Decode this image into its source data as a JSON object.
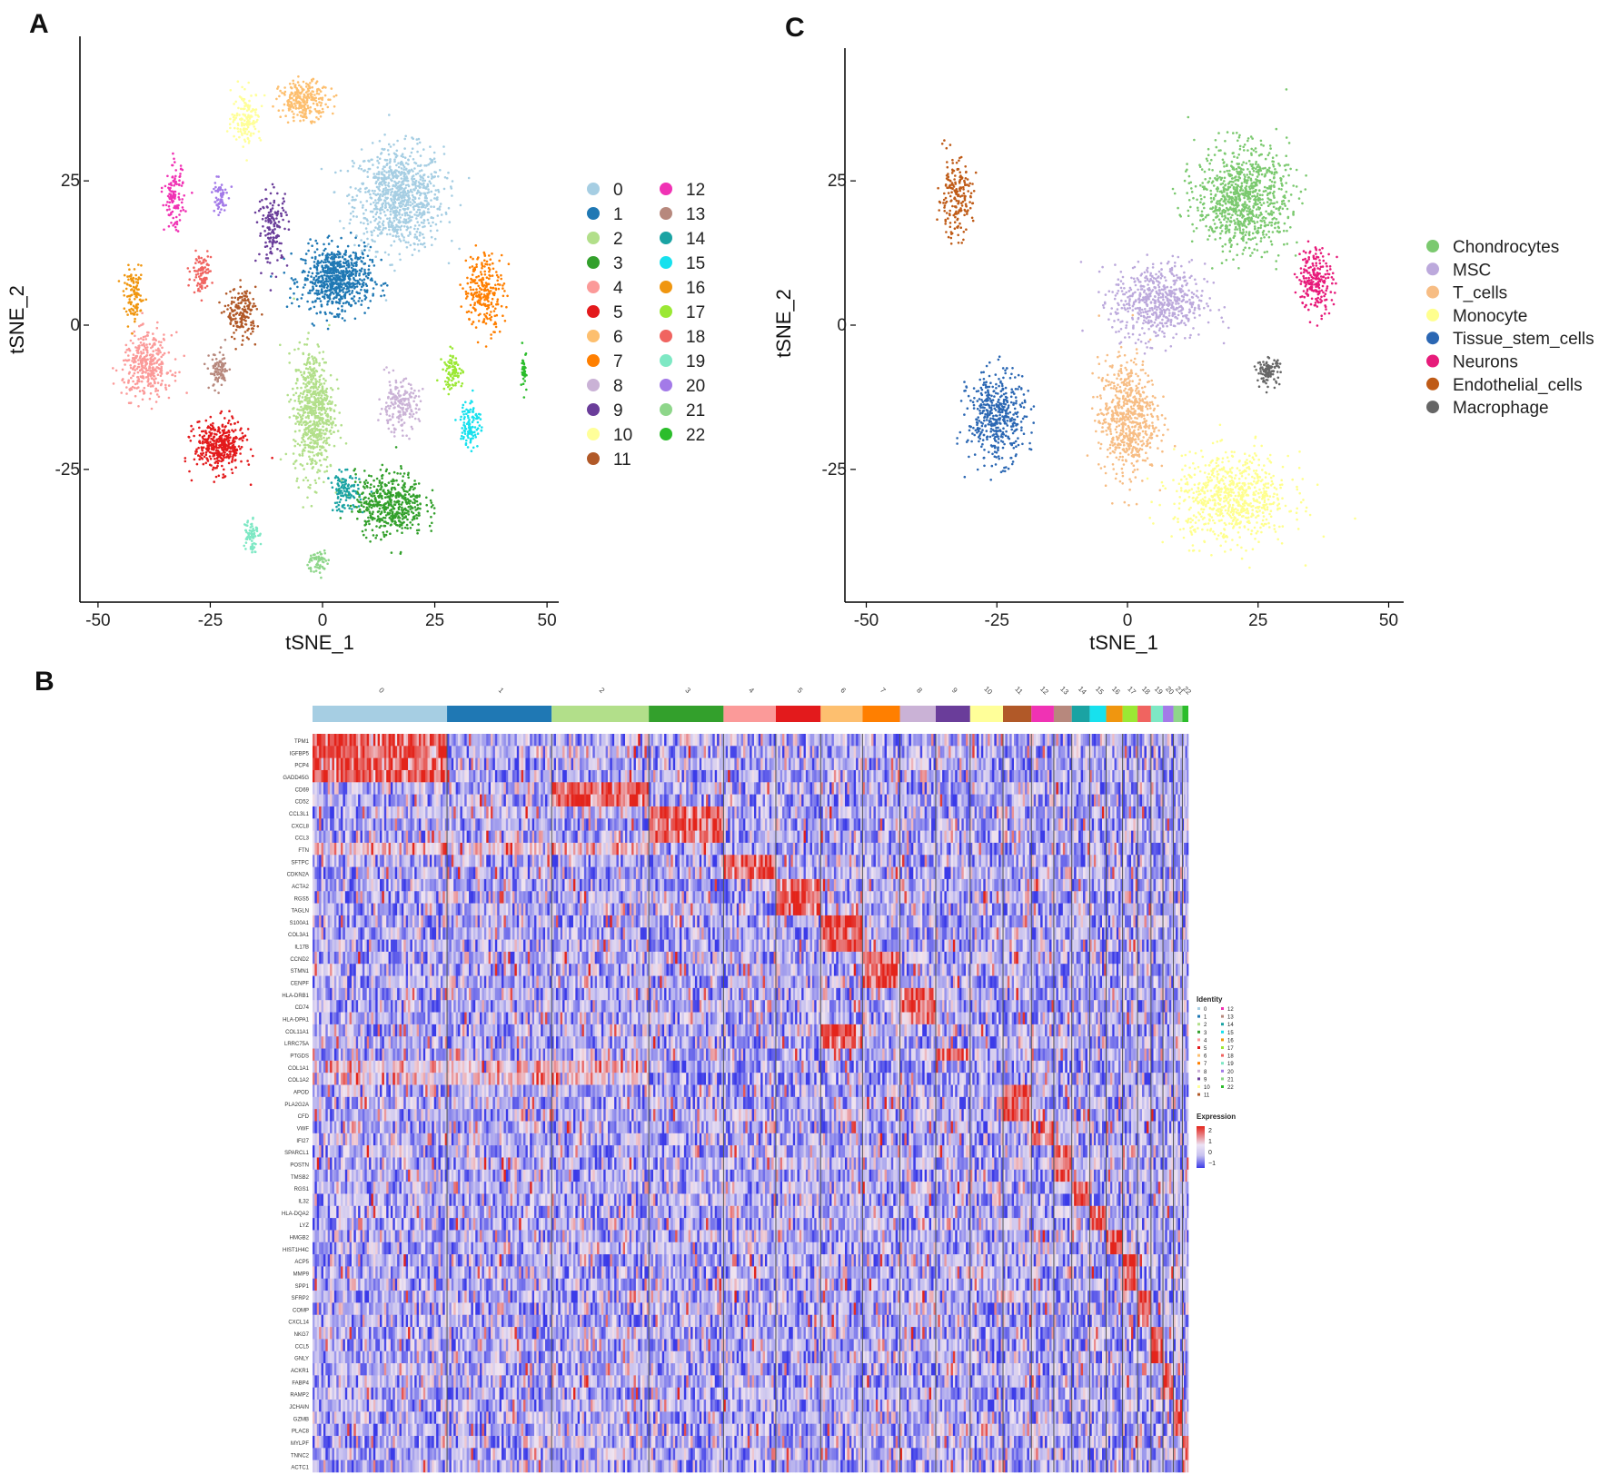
{
  "panels": {
    "a": "A",
    "b": "B",
    "c": "C"
  },
  "axis_ticks_x": [
    "-50",
    "-25",
    "0",
    "25",
    "50"
  ],
  "axis_ticks_y": [
    "-25",
    "0",
    "25"
  ],
  "chart_data": [
    {
      "type": "scatter",
      "panel": "A",
      "xlabel": "tSNE_1",
      "ylabel": "tSNE_2",
      "xlim": [
        -52,
        52
      ],
      "ylim": [
        -48,
        48
      ],
      "legend_position": "right",
      "clusters": [
        {
          "label": "0",
          "color": "#a6cee3",
          "x": 17,
          "y": 22,
          "sx": 9,
          "sy": 8,
          "n": 900
        },
        {
          "label": "1",
          "color": "#1f78b4",
          "x": 3,
          "y": 8,
          "sx": 7,
          "sy": 5,
          "n": 700
        },
        {
          "label": "2",
          "color": "#b2df8a",
          "x": -2,
          "y": -15,
          "sx": 4,
          "sy": 10,
          "n": 650
        },
        {
          "label": "3",
          "color": "#33a02c",
          "x": 15,
          "y": -31,
          "sx": 7,
          "sy": 5,
          "n": 500
        },
        {
          "label": "4",
          "color": "#fb9a99",
          "x": -39,
          "y": -7,
          "sx": 5,
          "sy": 5,
          "n": 350
        },
        {
          "label": "5",
          "color": "#e31a1c",
          "x": -23,
          "y": -21,
          "sx": 5,
          "sy": 4,
          "n": 400
        },
        {
          "label": "6",
          "color": "#fdbf6f",
          "x": -4,
          "y": 39,
          "sx": 5,
          "sy": 3,
          "n": 250
        },
        {
          "label": "7",
          "color": "#ff7f00",
          "x": 36,
          "y": 6,
          "sx": 4,
          "sy": 6,
          "n": 250
        },
        {
          "label": "8",
          "color": "#cab2d6",
          "x": 17,
          "y": -14,
          "sx": 4,
          "sy": 4,
          "n": 200
        },
        {
          "label": "9",
          "color": "#6a3d9a",
          "x": -11,
          "y": 17,
          "sx": 3,
          "sy": 6,
          "n": 150
        },
        {
          "label": "10",
          "color": "#ffff99",
          "x": -17,
          "y": 36,
          "sx": 3,
          "sy": 4,
          "n": 150
        },
        {
          "label": "11",
          "color": "#b15928",
          "x": -18,
          "y": 2,
          "sx": 3,
          "sy": 4,
          "n": 180
        },
        {
          "label": "12",
          "color": "#f032b4",
          "x": -33,
          "y": 22,
          "sx": 2,
          "sy": 5,
          "n": 120
        },
        {
          "label": "13",
          "color": "#b7887d",
          "x": -23,
          "y": -8,
          "sx": 2,
          "sy": 3,
          "n": 90
        },
        {
          "label": "14",
          "color": "#1aa3a3",
          "x": 5,
          "y": -29,
          "sx": 3,
          "sy": 3,
          "n": 120
        },
        {
          "label": "15",
          "color": "#17e1ee",
          "x": 33,
          "y": -17,
          "sx": 2,
          "sy": 4,
          "n": 110
        },
        {
          "label": "16",
          "color": "#f0960f",
          "x": -42,
          "y": 5,
          "sx": 2,
          "sy": 4,
          "n": 110
        },
        {
          "label": "17",
          "color": "#9be834",
          "x": 29,
          "y": -8,
          "sx": 2,
          "sy": 3,
          "n": 90
        },
        {
          "label": "18",
          "color": "#f06460",
          "x": -27,
          "y": 9,
          "sx": 2,
          "sy": 3,
          "n": 90
        },
        {
          "label": "19",
          "color": "#7ee8c4",
          "x": -16,
          "y": -36,
          "sx": 1.5,
          "sy": 3,
          "n": 70
        },
        {
          "label": "20",
          "color": "#a37ae8",
          "x": -23,
          "y": 22,
          "sx": 1.5,
          "sy": 3,
          "n": 60
        },
        {
          "label": "21",
          "color": "#8ed68a",
          "x": -1,
          "y": -41,
          "sx": 2,
          "sy": 2,
          "n": 60
        },
        {
          "label": "22",
          "color": "#2bbd2b",
          "x": 45,
          "y": -8,
          "sx": 0.6,
          "sy": 3,
          "n": 40
        }
      ]
    },
    {
      "type": "scatter",
      "panel": "C",
      "xlabel": "tSNE_1",
      "ylabel": "tSNE_2",
      "xlim": [
        -52,
        52
      ],
      "ylim": [
        -48,
        48
      ],
      "legend_position": "right",
      "clusters": [
        {
          "label": "Chondrocytes",
          "color": "#7bc96f",
          "x": 22,
          "y": 22,
          "sx": 8,
          "sy": 8,
          "n": 900
        },
        {
          "label": "MSC",
          "color": "#bca9dc",
          "x": 6,
          "y": 4,
          "sx": 8,
          "sy": 6,
          "n": 600
        },
        {
          "label": "T_cells",
          "color": "#f7bd84",
          "x": 0,
          "y": -16,
          "sx": 5,
          "sy": 9,
          "n": 650
        },
        {
          "label": "Monocyte",
          "color": "#ffff8e",
          "x": 20,
          "y": -30,
          "sx": 10,
          "sy": 7,
          "n": 750
        },
        {
          "label": "Tissue_stem_cells",
          "color": "#2b67b3",
          "x": -25,
          "y": -16,
          "sx": 5,
          "sy": 7,
          "n": 450
        },
        {
          "label": "Neurons",
          "color": "#e71b7a",
          "x": 36,
          "y": 8,
          "sx": 3,
          "sy": 5,
          "n": 220
        },
        {
          "label": "Endothelial_cells",
          "color": "#bf5b17",
          "x": -33,
          "y": 22,
          "sx": 3,
          "sy": 6,
          "n": 200
        },
        {
          "label": "Macrophage",
          "color": "#666666",
          "x": 27,
          "y": -8,
          "sx": 2,
          "sy": 2,
          "n": 100
        }
      ]
    },
    {
      "type": "heatmap",
      "panel": "B",
      "legend_title_identity": "Identity",
      "legend_title_expression": "Expression",
      "expression_scale": {
        "low": "#3b3be8",
        "mid": "#c8c2ef",
        "high": "#e3241b",
        "ticks": [
          "2",
          "1",
          "0",
          "−1"
        ]
      },
      "column_groups": [
        {
          "label": "0",
          "color": "#a6cee3",
          "cells": 900
        },
        {
          "label": "1",
          "color": "#1f78b4",
          "cells": 700
        },
        {
          "label": "2",
          "color": "#b2df8a",
          "cells": 650
        },
        {
          "label": "3",
          "color": "#33a02c",
          "cells": 500
        },
        {
          "label": "4",
          "color": "#fb9a99",
          "cells": 350
        },
        {
          "label": "5",
          "color": "#e31a1c",
          "cells": 300
        },
        {
          "label": "6",
          "color": "#fdbf6f",
          "cells": 280
        },
        {
          "label": "7",
          "color": "#ff7f00",
          "cells": 250
        },
        {
          "label": "8",
          "color": "#cab2d6",
          "cells": 240
        },
        {
          "label": "9",
          "color": "#6a3d9a",
          "cells": 230
        },
        {
          "label": "10",
          "color": "#ffff99",
          "cells": 220
        },
        {
          "label": "11",
          "color": "#b15928",
          "cells": 190
        },
        {
          "label": "12",
          "color": "#f032b4",
          "cells": 150
        },
        {
          "label": "13",
          "color": "#b7887d",
          "cells": 120
        },
        {
          "label": "14",
          "color": "#1aa3a3",
          "cells": 120
        },
        {
          "label": "15",
          "color": "#17e1ee",
          "cells": 110
        },
        {
          "label": "16",
          "color": "#f0960f",
          "cells": 110
        },
        {
          "label": "17",
          "color": "#9be834",
          "cells": 100
        },
        {
          "label": "18",
          "color": "#f06460",
          "cells": 90
        },
        {
          "label": "19",
          "color": "#7ee8c4",
          "cells": 80
        },
        {
          "label": "20",
          "color": "#a37ae8",
          "cells": 70
        },
        {
          "label": "21",
          "color": "#8ed68a",
          "cells": 60
        },
        {
          "label": "22",
          "color": "#2bbd2b",
          "cells": 40
        }
      ],
      "genes": [
        "TPM1",
        "IGFBP5",
        "PCP4",
        "GADD45G",
        "CD69",
        "CD52",
        "CCL3L1",
        "CXCL8",
        "CCL3",
        "FTN",
        "SFTPC",
        "CDKN2A",
        "ACTA2",
        "RGS5",
        "TAGLN",
        "S100A1",
        "COL3A1",
        "IL17B",
        "CCND2",
        "STMN1",
        "CENPF",
        "HLA-DRB1",
        "CD74",
        "HLA-DPA1",
        "COL11A1",
        "LRRC75A",
        "PTGDS",
        "COL1A1",
        "COL1A2",
        "APOD",
        "PLA2G2A",
        "CFD",
        "VWF",
        "IFI27",
        "SPARCL1",
        "POSTN",
        "TMSB2",
        "RGS1",
        "IL32",
        "HLA-DQA2",
        "LYZ",
        "HMGB2",
        "HIST1H4C",
        "ACP5",
        "MMP9",
        "SPP1",
        "SFRP2",
        "COMP",
        "CXCL14",
        "NKG7",
        "CCL5",
        "GNLY",
        "ACKR1",
        "FABP4",
        "RAMP2",
        "JCHAIN",
        "GZMB",
        "PLAC8",
        "MYLPF",
        "TNNC2",
        "ACTC1"
      ],
      "marker_cluster": [
        0,
        0,
        0,
        0,
        2,
        2,
        3,
        3,
        3,
        -1,
        4,
        4,
        5,
        5,
        5,
        6,
        6,
        6,
        7,
        7,
        7,
        8,
        8,
        8,
        6,
        6,
        9,
        -1,
        -1,
        11,
        11,
        11,
        12,
        12,
        13,
        13,
        13,
        14,
        14,
        15,
        15,
        16,
        16,
        17,
        17,
        17,
        18,
        18,
        18,
        19,
        19,
        19,
        20,
        20,
        20,
        21,
        21,
        21,
        22,
        22,
        22
      ]
    }
  ]
}
